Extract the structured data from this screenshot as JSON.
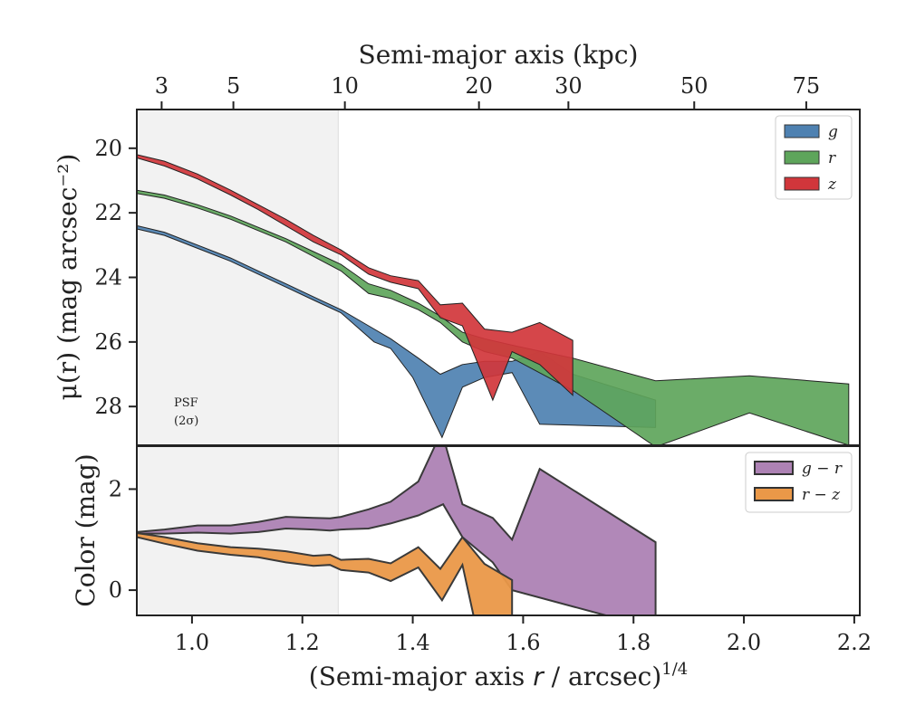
{
  "chart_data": [
    {
      "type": "area",
      "panel": "surface-brightness",
      "ylabel": "μ(r) (mag arcsec⁻²)",
      "ylim": [
        29.2,
        18.8
      ],
      "xlim": [
        0.9,
        2.21
      ],
      "y_ticks": [
        20,
        22,
        24,
        26,
        28
      ],
      "y_tick_labels": [
        "20",
        "22",
        "24",
        "26",
        "28"
      ],
      "y_inverted": true,
      "top_axis": {
        "label": "Semi-major axis (kpc)",
        "ticks_kpc": [
          3,
          5,
          10,
          20,
          30,
          50,
          75
        ],
        "tick_labels": [
          "3",
          "5",
          "10",
          "20",
          "30",
          "50",
          "75"
        ],
        "tick_positions_x": [
          0.945,
          1.075,
          1.277,
          1.52,
          1.682,
          1.91,
          2.113
        ]
      },
      "psf_region": {
        "x_max": 1.265,
        "label_line1": "PSF",
        "label_line2": "(2σ)"
      },
      "legend": {
        "placement": "top-right",
        "entries": [
          "g",
          "r",
          "z"
        ]
      },
      "grid": false,
      "series": [
        {
          "name": "g",
          "color": "#4e81b1",
          "upper": [
            [
              0.9,
              22.4
            ],
            [
              0.95,
              22.6
            ],
            [
              1.01,
              23.0
            ],
            [
              1.07,
              23.4
            ],
            [
              1.12,
              23.8
            ],
            [
              1.17,
              24.2
            ],
            [
              1.22,
              24.6
            ],
            [
              1.27,
              25.0
            ],
            [
              1.32,
              25.5
            ],
            [
              1.36,
              25.9
            ],
            [
              1.41,
              26.5
            ],
            [
              1.45,
              27.0
            ],
            [
              1.49,
              26.7
            ],
            [
              1.53,
              26.6
            ],
            [
              1.58,
              26.6
            ],
            [
              1.63,
              26.3
            ],
            [
              1.69,
              27.0
            ],
            [
              1.84,
              27.8
            ]
          ],
          "lower": [
            [
              0.9,
              22.5
            ],
            [
              0.95,
              22.7
            ],
            [
              1.01,
              23.1
            ],
            [
              1.07,
              23.5
            ],
            [
              1.12,
              23.9
            ],
            [
              1.17,
              24.3
            ],
            [
              1.22,
              24.7
            ],
            [
              1.27,
              25.1
            ],
            [
              1.33,
              26.0
            ],
            [
              1.36,
              26.2
            ],
            [
              1.4,
              27.1
            ],
            [
              1.453,
              28.96
            ],
            [
              1.49,
              27.4
            ],
            [
              1.53,
              27.1
            ],
            [
              1.58,
              26.95
            ],
            [
              1.63,
              28.55
            ],
            [
              1.84,
              28.65
            ]
          ]
        },
        {
          "name": "r",
          "color": "#5ea55b",
          "upper": [
            [
              0.9,
              21.3
            ],
            [
              0.95,
              21.45
            ],
            [
              1.01,
              21.75
            ],
            [
              1.07,
              22.1
            ],
            [
              1.12,
              22.45
            ],
            [
              1.17,
              22.8
            ],
            [
              1.22,
              23.2
            ],
            [
              1.27,
              23.6
            ],
            [
              1.32,
              24.2
            ],
            [
              1.36,
              24.4
            ],
            [
              1.41,
              24.8
            ],
            [
              1.45,
              25.2
            ],
            [
              1.49,
              25.7
            ],
            [
              1.53,
              25.9
            ],
            [
              1.58,
              26.1
            ],
            [
              1.69,
              26.5
            ],
            [
              1.84,
              27.2
            ],
            [
              2.01,
              27.05
            ],
            [
              2.19,
              27.3
            ]
          ],
          "lower": [
            [
              0.9,
              21.4
            ],
            [
              0.95,
              21.55
            ],
            [
              1.01,
              21.85
            ],
            [
              1.07,
              22.2
            ],
            [
              1.12,
              22.55
            ],
            [
              1.17,
              22.9
            ],
            [
              1.22,
              23.35
            ],
            [
              1.27,
              23.8
            ],
            [
              1.32,
              24.5
            ],
            [
              1.36,
              24.65
            ],
            [
              1.41,
              25.0
            ],
            [
              1.45,
              25.4
            ],
            [
              1.49,
              26.0
            ],
            [
              1.53,
              26.3
            ],
            [
              1.58,
              26.5
            ],
            [
              1.69,
              27.5
            ],
            [
              1.84,
              29.25
            ],
            [
              2.01,
              28.2
            ],
            [
              2.19,
              29.2
            ]
          ]
        },
        {
          "name": "z",
          "color": "#d1363b",
          "upper": [
            [
              0.9,
              20.2
            ],
            [
              0.95,
              20.4
            ],
            [
              1.01,
              20.8
            ],
            [
              1.07,
              21.3
            ],
            [
              1.12,
              21.75
            ],
            [
              1.17,
              22.2
            ],
            [
              1.22,
              22.7
            ],
            [
              1.27,
              23.15
            ],
            [
              1.32,
              23.7
            ],
            [
              1.36,
              23.95
            ],
            [
              1.41,
              24.1
            ],
            [
              1.45,
              24.85
            ],
            [
              1.49,
              24.8
            ],
            [
              1.53,
              25.6
            ],
            [
              1.58,
              25.7
            ],
            [
              1.63,
              25.4
            ],
            [
              1.69,
              25.95
            ]
          ],
          "lower": [
            [
              0.9,
              20.3
            ],
            [
              0.95,
              20.55
            ],
            [
              1.01,
              20.95
            ],
            [
              1.07,
              21.45
            ],
            [
              1.12,
              21.9
            ],
            [
              1.17,
              22.4
            ],
            [
              1.22,
              22.9
            ],
            [
              1.27,
              23.3
            ],
            [
              1.32,
              23.9
            ],
            [
              1.36,
              24.15
            ],
            [
              1.41,
              24.35
            ],
            [
              1.45,
              25.25
            ],
            [
              1.49,
              25.5
            ],
            [
              1.545,
              27.8
            ],
            [
              1.58,
              26.3
            ],
            [
              1.63,
              26.7
            ],
            [
              1.69,
              27.65
            ]
          ]
        }
      ]
    },
    {
      "type": "area",
      "panel": "color",
      "xlabel": "(Semi-major axis r / arcsec)^1/4",
      "xlabel_parts": {
        "prefix": "(Semi-major axis ",
        "var": "r",
        "middle": " / arcsec)",
        "exponent": "1/4"
      },
      "ylabel": "Color (mag)",
      "xlim": [
        0.9,
        2.21
      ],
      "ylim": [
        -0.5,
        2.85
      ],
      "x_ticks": [
        1.0,
        1.2,
        1.4,
        1.6,
        1.8,
        2.0,
        2.2
      ],
      "x_tick_labels": [
        "1.0",
        "1.2",
        "1.4",
        "1.6",
        "1.8",
        "2.0",
        "2.2"
      ],
      "y_ticks": [
        0,
        2
      ],
      "y_tick_labels": [
        "0",
        "2"
      ],
      "legend": {
        "placement": "top-right",
        "entries": [
          "g − r",
          "r − z"
        ]
      },
      "grid": false,
      "series": [
        {
          "name": "g − r",
          "color": "#ad82b4",
          "upper": [
            [
              0.9,
              1.15
            ],
            [
              0.95,
              1.2
            ],
            [
              1.01,
              1.28
            ],
            [
              1.07,
              1.28
            ],
            [
              1.12,
              1.35
            ],
            [
              1.17,
              1.45
            ],
            [
              1.22,
              1.43
            ],
            [
              1.25,
              1.42
            ],
            [
              1.27,
              1.45
            ],
            [
              1.32,
              1.6
            ],
            [
              1.36,
              1.75
            ],
            [
              1.41,
              2.15
            ],
            [
              1.44,
              2.85
            ],
            [
              1.46,
              2.85
            ],
            [
              1.49,
              1.7
            ],
            [
              1.545,
              1.43
            ],
            [
              1.58,
              1.0
            ],
            [
              1.63,
              2.4
            ],
            [
              1.84,
              0.95
            ]
          ],
          "lower": [
            [
              0.9,
              1.12
            ],
            [
              0.95,
              1.12
            ],
            [
              1.01,
              1.14
            ],
            [
              1.07,
              1.12
            ],
            [
              1.12,
              1.15
            ],
            [
              1.17,
              1.22
            ],
            [
              1.22,
              1.2
            ],
            [
              1.25,
              1.18
            ],
            [
              1.27,
              1.2
            ],
            [
              1.32,
              1.22
            ],
            [
              1.36,
              1.32
            ],
            [
              1.41,
              1.48
            ],
            [
              1.455,
              1.7
            ],
            [
              1.49,
              1.05
            ],
            [
              1.545,
              0.55
            ],
            [
              1.58,
              0.0
            ],
            [
              1.75,
              -0.5
            ],
            [
              1.84,
              -0.5
            ]
          ]
        },
        {
          "name": "r − z",
          "color": "#ea9848",
          "upper": [
            [
              0.9,
              1.13
            ],
            [
              0.95,
              1.05
            ],
            [
              1.01,
              0.93
            ],
            [
              1.07,
              0.85
            ],
            [
              1.12,
              0.82
            ],
            [
              1.17,
              0.77
            ],
            [
              1.22,
              0.68
            ],
            [
              1.25,
              0.7
            ],
            [
              1.27,
              0.6
            ],
            [
              1.32,
              0.62
            ],
            [
              1.36,
              0.53
            ],
            [
              1.41,
              0.85
            ],
            [
              1.45,
              0.42
            ],
            [
              1.49,
              1.05
            ],
            [
              1.53,
              0.52
            ],
            [
              1.58,
              0.2
            ]
          ],
          "lower": [
            [
              0.9,
              1.05
            ],
            [
              0.95,
              0.92
            ],
            [
              1.01,
              0.78
            ],
            [
              1.07,
              0.7
            ],
            [
              1.12,
              0.65
            ],
            [
              1.17,
              0.55
            ],
            [
              1.22,
              0.48
            ],
            [
              1.25,
              0.5
            ],
            [
              1.27,
              0.4
            ],
            [
              1.32,
              0.35
            ],
            [
              1.36,
              0.18
            ],
            [
              1.41,
              0.45
            ],
            [
              1.453,
              -0.2
            ],
            [
              1.49,
              0.5
            ],
            [
              1.51,
              -0.5
            ],
            [
              1.58,
              -0.5
            ]
          ]
        }
      ]
    }
  ]
}
